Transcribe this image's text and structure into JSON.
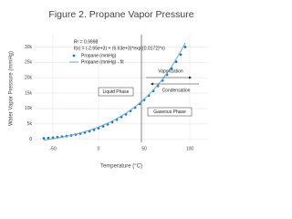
{
  "chart_data": {
    "type": "scatter",
    "title": "Figure 2. Propane Vapor Pressure",
    "x_label": "Temperature (°C)",
    "y_label": "Water Vapor Pressure (mmHg)",
    "annotations": {
      "r2": "R² = 0.9998",
      "formula": "f(x) = (-2.65e+3) + (6.63e+3)*exp((0.0172)*x)",
      "vaporization": "Vaporization",
      "condensation": "Condensation",
      "liquid": "Liquid Phase",
      "gaseous": "Gaseous Phase"
    },
    "series": [
      {
        "name": "Propane (mmHg)",
        "color": "#1f77b4",
        "mode": "markers",
        "x": [
          -60,
          -55,
          -50,
          -45,
          -40,
          -35,
          -30,
          -25,
          -20,
          -15,
          -10,
          -5,
          0,
          5,
          10,
          15,
          20,
          25,
          30,
          35,
          40,
          45,
          50,
          55,
          60,
          65,
          70,
          75,
          80,
          85,
          90,
          95
        ],
        "values": [
          330,
          420,
          530,
          660,
          830,
          1020,
          1250,
          1520,
          1840,
          2200,
          2620,
          3080,
          3600,
          4190,
          4850,
          5580,
          6400,
          7260,
          8150,
          9200,
          10300,
          11500,
          12800,
          14200,
          15700,
          17350,
          19100,
          21000,
          23000,
          25200,
          27500,
          30000
        ]
      },
      {
        "name": "Propane (mmHg) - fit",
        "color": "#6fa8dc",
        "mode": "line",
        "x": [
          -60,
          -50,
          -40,
          -30,
          -20,
          -10,
          0,
          10,
          20,
          30,
          40,
          50,
          60,
          70,
          80,
          90,
          95
        ],
        "values": [
          -288,
          156,
          682,
          1307,
          2050,
          2932,
          3980,
          5224,
          6702,
          8457,
          10542,
          13018,
          15959,
          19452,
          23600,
          28527,
          31318
        ]
      }
    ],
    "xlim": [
      -70,
      120
    ],
    "xticks": [
      -50,
      0,
      50,
      100
    ],
    "ylim": [
      -1000,
      34000
    ],
    "yticks": [
      0,
      {
        "value": 5000,
        "label": "5k"
      },
      {
        "value": 10000,
        "label": "10k"
      },
      {
        "value": 15000,
        "label": "15k"
      },
      {
        "value": 20000,
        "label": "20k"
      },
      {
        "value": 25000,
        "label": "25k"
      },
      {
        "value": 30000,
        "label": "30k"
      }
    ],
    "grid": true
  }
}
